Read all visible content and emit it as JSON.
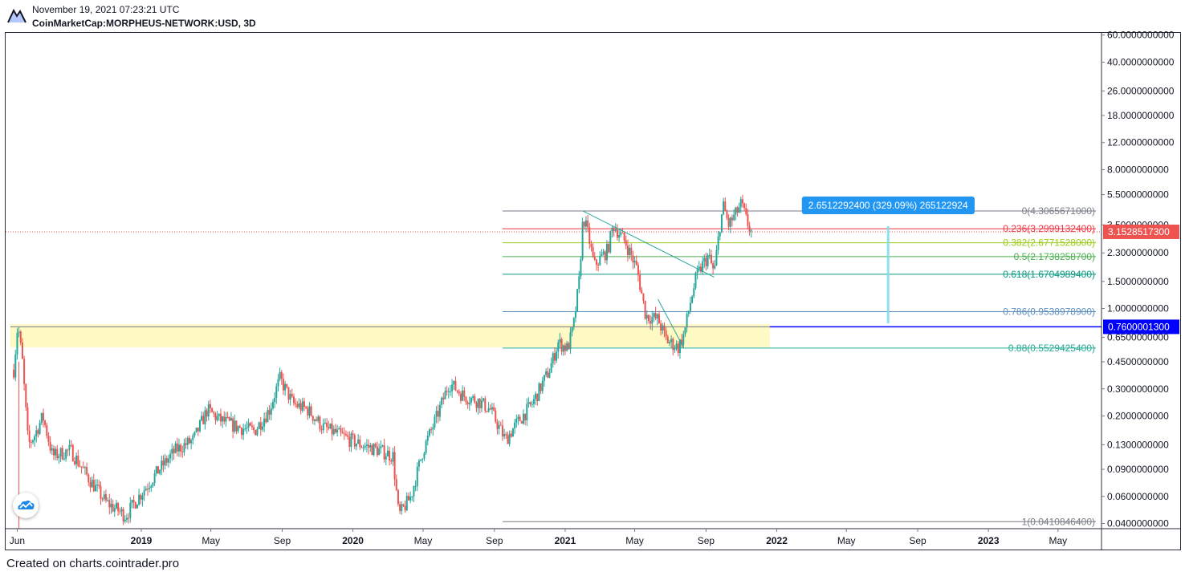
{
  "header": {
    "datetime": "November 19, 2021 07:23:21 UTC",
    "symbol": "CoinMarketCap:MORPHEUS-NETWORK:USD, 3D"
  },
  "footer": {
    "text": "Created on charts.cointrader.pro"
  },
  "colors": {
    "up": "#26a69a",
    "down": "#ef5350",
    "zone": "#fff9c4",
    "last_price": "#ef5350",
    "level_marker": "#0000ff",
    "measure": "#2196f3"
  },
  "icons": {
    "logo": "tradingview-logo-icon",
    "float_button": "tradingview-cloud-icon"
  },
  "chart_data": {
    "type": "candlestick",
    "symbol": "CoinMarketCap:MORPHEUS-NETWORK:USD",
    "interval": "3D",
    "scale": "log",
    "ylim": [
      0.037,
      62
    ],
    "xlim": [
      "2018-05-12",
      "2023-07-15"
    ],
    "y_ticks": [
      {
        "value": 60,
        "label": "60.0000000000"
      },
      {
        "value": 40,
        "label": "40.0000000000"
      },
      {
        "value": 26,
        "label": "26.0000000000"
      },
      {
        "value": 18,
        "label": "18.0000000000"
      },
      {
        "value": 12,
        "label": "12.0000000000"
      },
      {
        "value": 8,
        "label": "8.0000000000"
      },
      {
        "value": 5.5,
        "label": "5.5000000000"
      },
      {
        "value": 3.5,
        "label": "3.5000000000"
      },
      {
        "value": 2.3,
        "label": "2.3000000000"
      },
      {
        "value": 1.5,
        "label": "1.5000000000"
      },
      {
        "value": 1.0,
        "label": "1.0000000000"
      },
      {
        "value": 0.65,
        "label": "0.6500000000"
      },
      {
        "value": 0.45,
        "label": "0.4500000000"
      },
      {
        "value": 0.3,
        "label": "0.3000000000"
      },
      {
        "value": 0.2,
        "label": "0.2000000000"
      },
      {
        "value": 0.13,
        "label": "0.1300000000"
      },
      {
        "value": 0.09,
        "label": "0.0900000000"
      },
      {
        "value": 0.06,
        "label": "0.0600000000"
      },
      {
        "value": 0.04,
        "label": "0.0400000000"
      }
    ],
    "x_ticks": [
      {
        "date": "2018-06-01",
        "label": "Jun",
        "bold": false
      },
      {
        "date": "2019-01-01",
        "label": "2019",
        "bold": true
      },
      {
        "date": "2019-05-01",
        "label": "May",
        "bold": false
      },
      {
        "date": "2019-09-01",
        "label": "Sep",
        "bold": false
      },
      {
        "date": "2020-01-01",
        "label": "2020",
        "bold": true
      },
      {
        "date": "2020-05-01",
        "label": "May",
        "bold": false
      },
      {
        "date": "2020-09-01",
        "label": "Sep",
        "bold": false
      },
      {
        "date": "2021-01-01",
        "label": "2021",
        "bold": true
      },
      {
        "date": "2021-05-01",
        "label": "May",
        "bold": false
      },
      {
        "date": "2021-09-01",
        "label": "Sep",
        "bold": false
      },
      {
        "date": "2022-01-01",
        "label": "2022",
        "bold": true
      },
      {
        "date": "2022-05-01",
        "label": "May",
        "bold": false
      },
      {
        "date": "2022-09-01",
        "label": "Sep",
        "bold": false
      },
      {
        "date": "2023-01-01",
        "label": "2023",
        "bold": true
      },
      {
        "date": "2023-05-01",
        "label": "May",
        "bold": false
      }
    ],
    "price_anchors": [
      [
        "2018-05-26",
        0.4
      ],
      [
        "2018-06-01",
        0.72
      ],
      [
        "2018-06-04",
        0.7
      ],
      [
        "2018-06-10",
        0.45
      ],
      [
        "2018-06-20",
        0.13
      ],
      [
        "2018-07-01",
        0.15
      ],
      [
        "2018-07-15",
        0.2
      ],
      [
        "2018-08-01",
        0.11
      ],
      [
        "2018-09-01",
        0.12
      ],
      [
        "2018-10-01",
        0.08
      ],
      [
        "2018-11-01",
        0.055
      ],
      [
        "2018-12-05",
        0.045
      ],
      [
        "2018-12-25",
        0.058
      ],
      [
        "2019-02-01",
        0.09
      ],
      [
        "2019-03-01",
        0.12
      ],
      [
        "2019-04-01",
        0.14
      ],
      [
        "2019-04-25",
        0.22
      ],
      [
        "2019-05-15",
        0.19
      ],
      [
        "2019-06-15",
        0.17
      ],
      [
        "2019-07-15",
        0.16
      ],
      [
        "2019-08-10",
        0.22
      ],
      [
        "2019-08-28",
        0.35
      ],
      [
        "2019-09-20",
        0.24
      ],
      [
        "2019-10-15",
        0.22
      ],
      [
        "2019-11-10",
        0.17
      ],
      [
        "2019-12-10",
        0.15
      ],
      [
        "2020-01-15",
        0.13
      ],
      [
        "2020-02-15",
        0.12
      ],
      [
        "2020-03-10",
        0.11
      ],
      [
        "2020-03-20",
        0.045
      ],
      [
        "2020-04-10",
        0.06
      ],
      [
        "2020-05-01",
        0.12
      ],
      [
        "2020-05-25",
        0.2
      ],
      [
        "2020-06-15",
        0.33
      ],
      [
        "2020-07-10",
        0.27
      ],
      [
        "2020-08-05",
        0.25
      ],
      [
        "2020-08-25",
        0.22
      ],
      [
        "2020-09-20",
        0.14
      ],
      [
        "2020-10-10",
        0.18
      ],
      [
        "2020-11-05",
        0.24
      ],
      [
        "2020-12-05",
        0.4
      ],
      [
        "2020-12-20",
        0.6
      ],
      [
        "2021-01-05",
        0.55
      ],
      [
        "2021-01-15",
        0.75
      ],
      [
        "2021-01-25",
        1.5
      ],
      [
        "2021-02-01",
        4.0
      ],
      [
        "2021-02-10",
        3.0
      ],
      [
        "2021-02-20",
        1.9
      ],
      [
        "2021-03-15",
        2.4
      ],
      [
        "2021-03-25",
        3.5
      ],
      [
        "2021-04-15",
        2.7
      ],
      [
        "2021-05-05",
        1.8
      ],
      [
        "2021-05-20",
        0.9
      ],
      [
        "2021-06-10",
        0.85
      ],
      [
        "2021-06-25",
        0.62
      ],
      [
        "2021-07-15",
        0.56
      ],
      [
        "2021-07-25",
        0.68
      ],
      [
        "2021-08-05",
        1.1
      ],
      [
        "2021-08-15",
        1.6
      ],
      [
        "2021-08-25",
        1.9
      ],
      [
        "2021-09-05",
        2.2
      ],
      [
        "2021-09-15",
        1.7
      ],
      [
        "2021-09-25",
        3.5
      ],
      [
        "2021-10-01",
        4.6
      ],
      [
        "2021-10-10",
        3.5
      ],
      [
        "2021-10-20",
        4.0
      ],
      [
        "2021-11-01",
        4.8
      ],
      [
        "2021-11-10",
        3.7
      ],
      [
        "2021-11-18",
        3.15
      ]
    ],
    "fibonacci": {
      "start_date": "2020-09-15",
      "levels": [
        {
          "ratio": "0",
          "price": 4.3065671,
          "label": "0(4.3065671000)",
          "color": "#787b86"
        },
        {
          "ratio": "0.236",
          "price": 3.2999132,
          "label": "0.236(3.2999132400)",
          "color": "#f23645"
        },
        {
          "ratio": "0.382",
          "price": 2.6771528,
          "label": "0.382(2.6771528000)",
          "color": "#9ccc1b"
        },
        {
          "ratio": "0.5",
          "price": 2.17382587,
          "label": "0.5(2.1738258700)",
          "color": "#4caf50"
        },
        {
          "ratio": "0.618",
          "price": 1.67049894,
          "label": "0.618(1.6704989400)",
          "color": "#089981"
        },
        {
          "ratio": "0.786",
          "price": 0.95389789,
          "label": "0.786(0.9538978900)",
          "color": "#5c8fbf"
        },
        {
          "ratio": "0.88",
          "price": 0.55294254,
          "label": "0.88(0.5529425400)",
          "color": "#22ab94"
        },
        {
          "ratio": "1",
          "price": 0.04108464,
          "label": "1(0.0410846400)",
          "color": "#787b86"
        }
      ]
    },
    "support_zone": {
      "from_date": "2018-05-20",
      "to_date": "2021-12-20",
      "low": 0.56,
      "high": 0.79
    },
    "horizontal_level": {
      "price": 0.76000013,
      "label": "0.7600001300"
    },
    "last_price": {
      "price": 3.15285173,
      "label": "3.1528517300"
    },
    "trendlines": [
      {
        "from": [
          "2021-02-01",
          4.3
        ],
        "to": [
          "2021-09-15",
          1.6
        ]
      },
      {
        "from": [
          "2021-06-10",
          1.15
        ],
        "to": [
          "2021-07-25",
          0.55
        ]
      }
    ],
    "measurement": {
      "date": "2022-07-12",
      "from_price": 0.8,
      "to_price": 3.43,
      "label": "2.6512292400 (329.09%) 265122924"
    }
  }
}
